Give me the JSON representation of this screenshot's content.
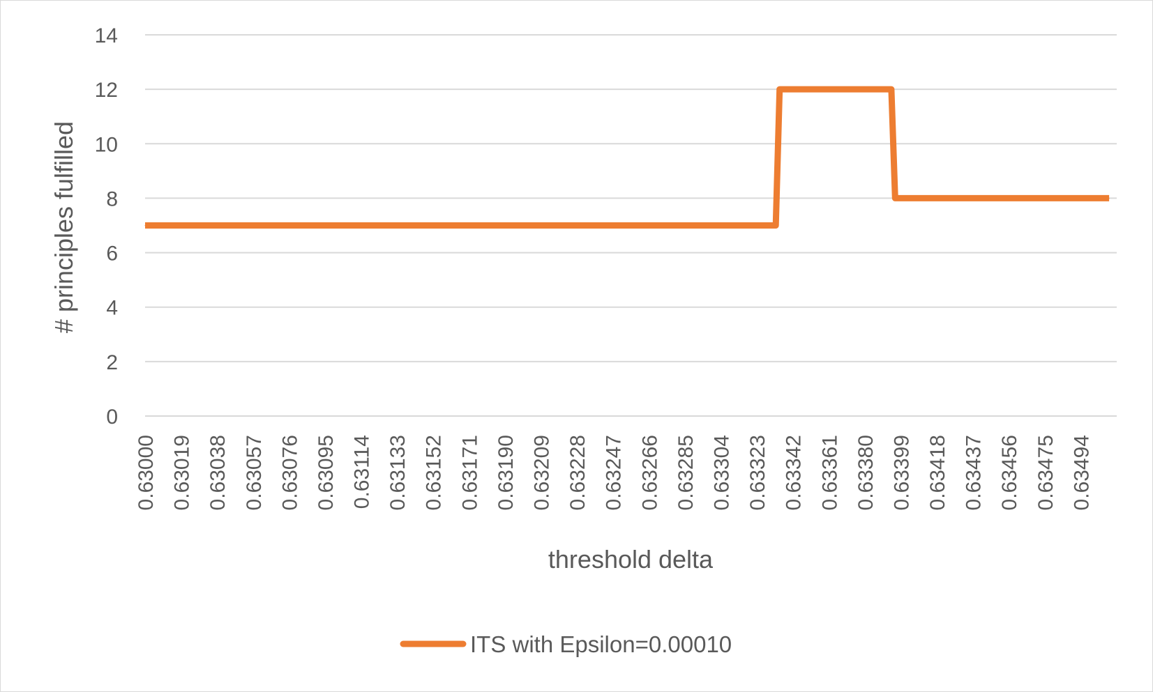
{
  "chart_data": {
    "type": "line",
    "title": "",
    "xlabel": "threshold delta",
    "ylabel": "# principles fulfilled",
    "ylim": [
      0,
      14
    ],
    "y_ticks": [
      0,
      2,
      4,
      6,
      8,
      10,
      12,
      14
    ],
    "grid": true,
    "legend_position": "bottom",
    "categories": [
      "0.63000",
      "0.63019",
      "0.63038",
      "0.63057",
      "0.63076",
      "0.63095",
      "0.63114",
      "0.63133",
      "0.63152",
      "0.63171",
      "0.63190",
      "0.63209",
      "0.63228",
      "0.63247",
      "0.63266",
      "0.63285",
      "0.63304",
      "0.63323",
      "0.63342",
      "0.63361",
      "0.63380",
      "0.63399",
      "0.63418",
      "0.63437",
      "0.63456",
      "0.63475",
      "0.63494"
    ],
    "series": [
      {
        "name": "ITS with Epsilon=0.00010",
        "color": "#ed7d31",
        "x": [
          0.63,
          0.63333,
          0.63335,
          0.63394,
          0.63396,
          0.63509
        ],
        "values": [
          7,
          7,
          12,
          12,
          8,
          8
        ]
      }
    ],
    "colors": {
      "gridline": "#d9d9d9",
      "text": "#595959"
    }
  }
}
